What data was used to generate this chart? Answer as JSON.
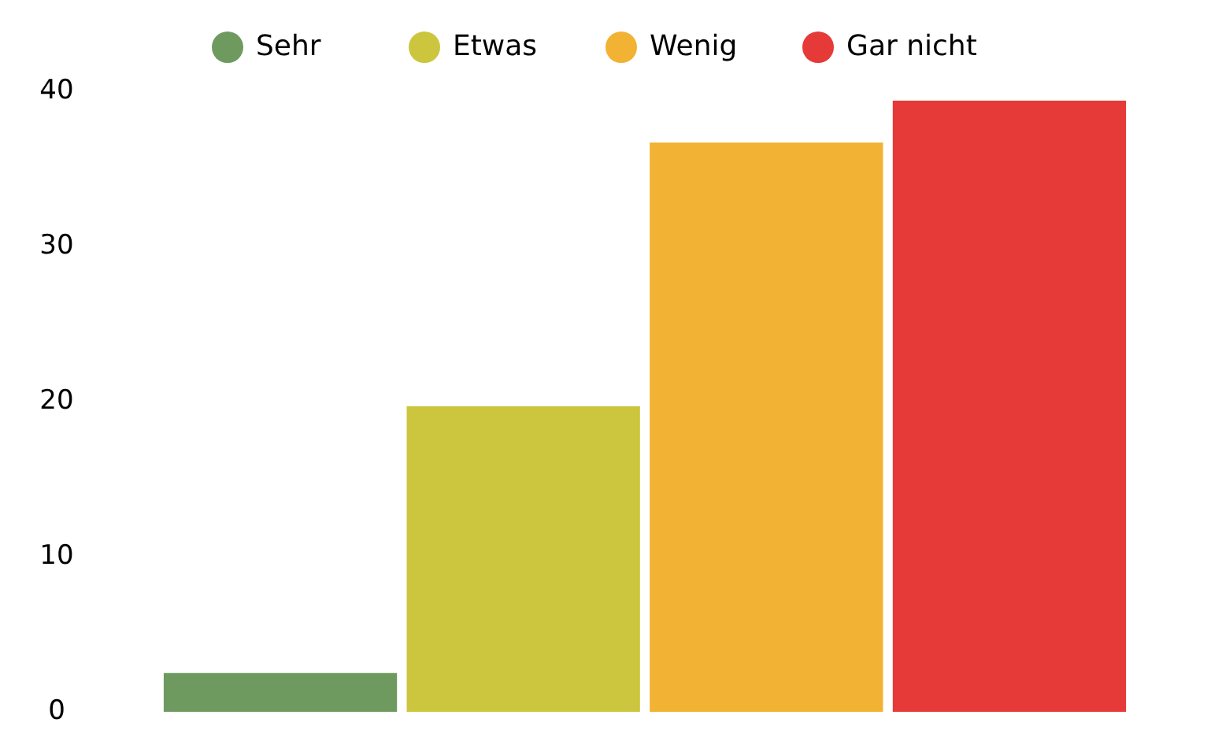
{
  "chart_data": {
    "type": "bar",
    "categories": [
      null
    ],
    "series": [
      {
        "name": "Sehr",
        "color": "#6f9a5f",
        "values": [
          2.5
        ]
      },
      {
        "name": "Etwas",
        "color": "#ccc53e",
        "values": [
          19.7
        ]
      },
      {
        "name": "Wenig",
        "color": "#f2b234",
        "values": [
          36.7
        ]
      },
      {
        "name": "Gar nicht",
        "color": "#e53a38",
        "values": [
          39.4
        ]
      }
    ],
    "ylim": [
      0,
      40
    ],
    "yticks": [
      0,
      10,
      20,
      30,
      40
    ],
    "tick_labels": "y",
    "grid": false,
    "legend": "top"
  }
}
